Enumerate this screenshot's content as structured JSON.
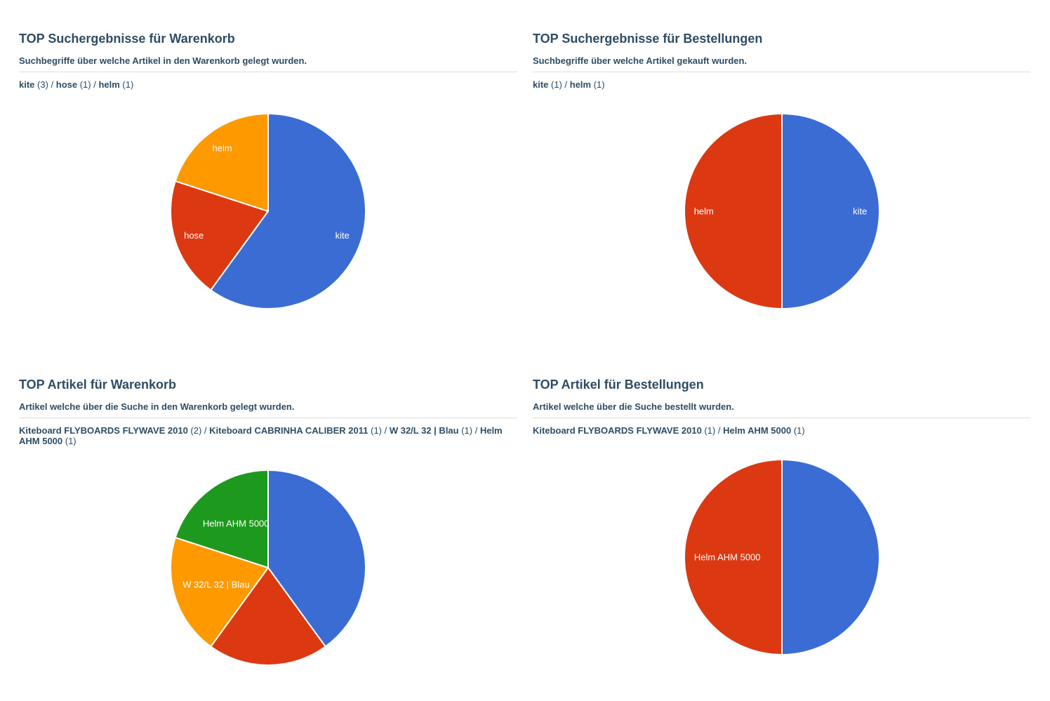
{
  "theme": {
    "background": "#ffffff",
    "heading_color": "#2e4c64",
    "divider_color": "#dcdcdc",
    "slice_label_color": "#ffffff"
  },
  "palette": {
    "blue": "#3a6cd4",
    "red": "#dc3912",
    "orange": "#ff9900",
    "green": "#1d9a1d"
  },
  "panels": [
    {
      "title": "TOP Suchergebnisse für Warenkorb",
      "subtitle": "Suchbegriffe über welche Artikel in den Warenkorb gelegt wurden.",
      "legend": [
        {
          "term": "kite",
          "count": "(3)"
        },
        {
          "term": "hose",
          "count": "(1)"
        },
        {
          "term": "helm",
          "count": "(1)"
        }
      ],
      "legend_separator": " / "
    },
    {
      "title": "TOP Suchergebnisse für Bestellungen",
      "subtitle": "Suchbegriffe über welche Artikel gekauft wurden.",
      "legend": [
        {
          "term": "kite",
          "count": "(1)"
        },
        {
          "term": "helm",
          "count": "(1)"
        }
      ],
      "legend_separator": " / "
    },
    {
      "title": "TOP Artikel für Warenkorb",
      "subtitle": "Artikel welche über die Suche in den Warenkorb gelegt wurden.",
      "legend": [
        {
          "term": "Kiteboard FLYBOARDS FLYWAVE 2010",
          "count": "(2)"
        },
        {
          "term": "Kiteboard CABRINHA CALIBER 2011",
          "count": "(1)"
        },
        {
          "term": "W 32/L 32 | Blau",
          "count": "(1)"
        },
        {
          "term": "Helm AHM 5000",
          "count": "(1)"
        }
      ],
      "legend_separator": " / "
    },
    {
      "title": "TOP Artikel für Bestellungen",
      "subtitle": "Artikel welche über die Suche bestellt wurden.",
      "legend": [
        {
          "term": "Kiteboard FLYBOARDS FLYWAVE 2010",
          "count": "(1)"
        },
        {
          "term": "Helm AHM 5000",
          "count": "(1)"
        }
      ],
      "legend_separator": " / "
    }
  ],
  "chart_data": [
    {
      "type": "pie",
      "title": "TOP Suchergebnisse für Warenkorb",
      "labels": [
        "kite",
        "hose",
        "helm"
      ],
      "values": [
        3,
        1,
        1
      ],
      "colors": [
        "#3a6cd4",
        "#dc3912",
        "#ff9900"
      ],
      "slice_text_visible": [
        true,
        true,
        true
      ],
      "slice_text_radius": [
        0.8,
        0.8,
        0.8
      ],
      "start_angle_deg": 0,
      "direction": "clockwise",
      "legend_position": "none"
    },
    {
      "type": "pie",
      "title": "TOP Suchergebnisse für Bestellungen",
      "labels": [
        "kite",
        "helm"
      ],
      "values": [
        1,
        1
      ],
      "colors": [
        "#3a6cd4",
        "#dc3912"
      ],
      "slice_text_visible": [
        true,
        true
      ],
      "slice_text_radius": [
        0.8,
        0.8
      ],
      "start_angle_deg": 0,
      "direction": "clockwise",
      "legend_position": "none"
    },
    {
      "type": "pie",
      "title": "TOP Artikel für Warenkorb",
      "labels": [
        "Kiteboard FLYBOARDS FLYWAVE 2010",
        "Kiteboard CABRINHA CALIBER 2011",
        "W 32/L 32 | Blau",
        "Helm AHM 5000"
      ],
      "values": [
        2,
        1,
        1,
        1
      ],
      "colors": [
        "#3a6cd4",
        "#dc3912",
        "#ff9900",
        "#1d9a1d"
      ],
      "slice_text_visible": [
        false,
        false,
        true,
        true
      ],
      "slice_text_radius": [
        0.8,
        0.8,
        0.56,
        0.56
      ],
      "start_angle_deg": 0,
      "direction": "clockwise",
      "legend_position": "none"
    },
    {
      "type": "pie",
      "title": "TOP Artikel für Bestellungen",
      "labels": [
        "Kiteboard FLYBOARDS FLYWAVE 2010",
        "Helm AHM 5000"
      ],
      "values": [
        1,
        1
      ],
      "colors": [
        "#3a6cd4",
        "#dc3912"
      ],
      "slice_text_visible": [
        false,
        true
      ],
      "slice_text_radius": [
        0.8,
        0.56
      ],
      "start_angle_deg": 0,
      "direction": "clockwise",
      "legend_position": "none"
    }
  ]
}
